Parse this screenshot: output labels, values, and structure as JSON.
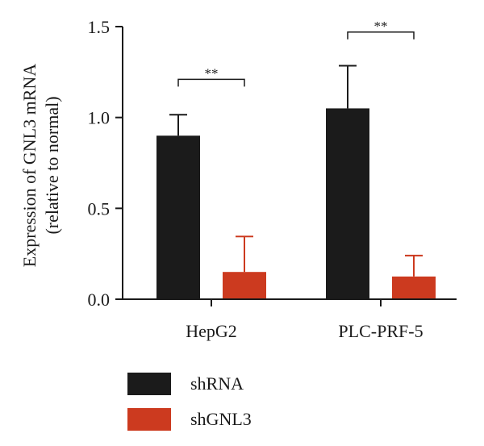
{
  "chart_data": {
    "type": "bar",
    "ylabel_lines": [
      "Expression of GNL3 mRNA",
      "(relative to normal)"
    ],
    "ylim": [
      0,
      1.5
    ],
    "yticks": [
      "0.0",
      "0.5",
      "1.0",
      "1.5"
    ],
    "categories": [
      "HepG2",
      "PLC-PRF-5"
    ],
    "series": [
      {
        "name": "shRNA",
        "color": "#1b1b1b",
        "values": [
          0.9,
          1.05
        ],
        "errors": [
          0.115,
          0.235
        ]
      },
      {
        "name": "shGNL3",
        "color": "#cc3a1f",
        "values": [
          0.15,
          0.125
        ],
        "errors": [
          0.195,
          0.115
        ]
      }
    ],
    "significance": [
      "**",
      "**"
    ],
    "legend_position": "bottom-left",
    "grid": false
  }
}
